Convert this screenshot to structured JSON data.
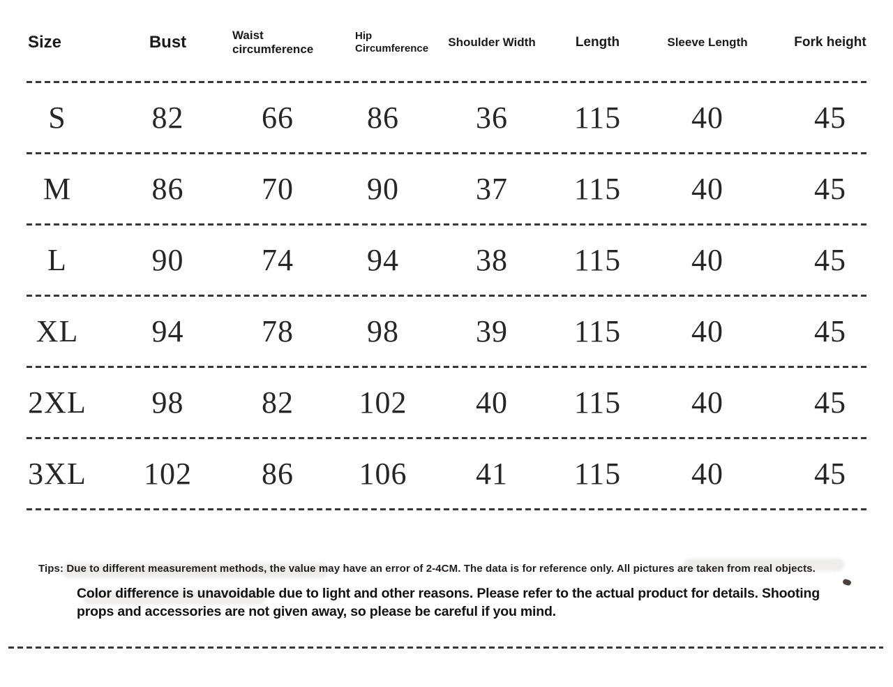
{
  "table": {
    "columns": [
      {
        "label": "Size"
      },
      {
        "label": "Bust"
      },
      {
        "label": "Waist circumference"
      },
      {
        "label": "Hip Circumference"
      },
      {
        "label": "Shoulder Width"
      },
      {
        "label": "Length"
      },
      {
        "label": "Sleeve Length"
      },
      {
        "label": "Fork height"
      }
    ],
    "rows": [
      [
        "S",
        "82",
        "66",
        "86",
        "36",
        "115",
        "40",
        "45"
      ],
      [
        "M",
        "86",
        "70",
        "90",
        "37",
        "115",
        "40",
        "45"
      ],
      [
        "L",
        "90",
        "74",
        "94",
        "38",
        "115",
        "40",
        "45"
      ],
      [
        "XL",
        "94",
        "78",
        "98",
        "39",
        "115",
        "40",
        "45"
      ],
      [
        "2XL",
        "98",
        "82",
        "102",
        "40",
        "115",
        "40",
        "45"
      ],
      [
        "3XL",
        "102",
        "86",
        "106",
        "41",
        "115",
        "40",
        "45"
      ]
    ]
  },
  "notes": {
    "tips": "Tips: Due to different measurement methods, the value may have an error of 2-4CM. The data is for reference only. All pictures are taken from real objects.",
    "disclaimer": "Color difference is unavoidable due to light and other reasons. Please refer to the actual product for details. Shooting props and accessories are not given away, so please be careful if you mind."
  },
  "colors": {
    "background": "#ffffff",
    "heading_text": "#1a1a1a",
    "value_text": "#262626",
    "dash_line": "#383838"
  }
}
